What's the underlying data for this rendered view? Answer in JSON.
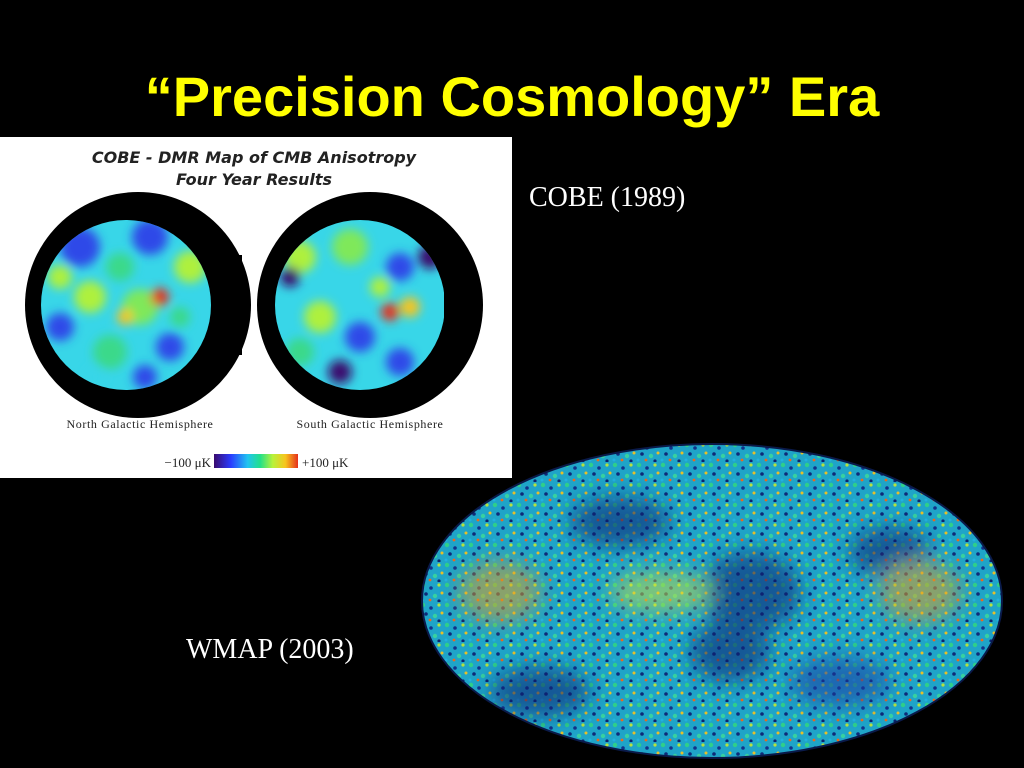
{
  "slide": {
    "title": "“Precision Cosmology” Era"
  },
  "cobe_figure": {
    "title_line1": "COBE - DMR Map of CMB Anisotropy",
    "title_line2": "Four Year Results",
    "north_label": "North Galactic Hemisphere",
    "south_label": "South Galactic Hemisphere",
    "scale_min": "−100  μK",
    "scale_max": "+100  μK"
  },
  "captions": {
    "cobe": "COBE (1989)",
    "wmap": "WMAP (2003)"
  },
  "colors": {
    "background": "#000000",
    "title": "#ffff00",
    "caption": "#ffffff",
    "figure_background": "#ffffff"
  }
}
